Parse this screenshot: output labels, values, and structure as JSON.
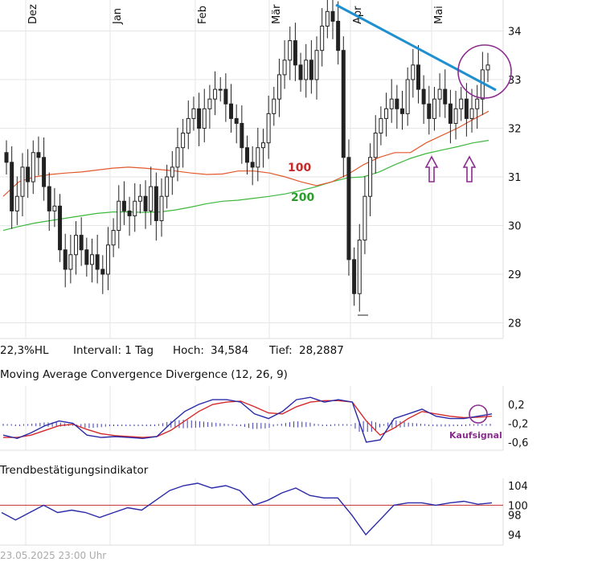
{
  "chart_data": [
    {
      "type": "candlestick",
      "panel": "price",
      "x_ticks": [
        "Dez",
        "Jan",
        "Feb",
        "Mär",
        "Apr",
        "Mai"
      ],
      "ylim": [
        27.8,
        34.6
      ],
      "y_ticks": [
        "34",
        "33",
        "32",
        "31",
        "30",
        "29",
        "28"
      ],
      "series": [
        {
          "name": "Kurs",
          "color": "#222222",
          "close": [
            31.3,
            30.3,
            30.6,
            31.2,
            30.9,
            31.5,
            31.4,
            30.8,
            30.3,
            30.4,
            29.5,
            29.1,
            29.4,
            29.8,
            29.5,
            29.2,
            29.4,
            29.1,
            29.0,
            29.6,
            29.9,
            30.5,
            30.3,
            30.2,
            30.5,
            30.6,
            30.3,
            30.8,
            30.1,
            30.6,
            31.0,
            31.2,
            31.6,
            31.9,
            32.2,
            32.4,
            32.0,
            32.4,
            32.6,
            32.8,
            32.8,
            32.5,
            32.2,
            32.1,
            31.6,
            31.3,
            31.2,
            31.6,
            31.7,
            32.3,
            32.6,
            33.1,
            33.4,
            33.8,
            33.3,
            33.0,
            33.4,
            33.0,
            33.6,
            34.1,
            34.4,
            34.2,
            33.6,
            31.4,
            29.3,
            28.6,
            29.7,
            30.6,
            31.4,
            31.9,
            32.2,
            32.4,
            32.6,
            32.4,
            32.3,
            33.0,
            33.3,
            32.8,
            32.5,
            32.2,
            32.6,
            32.8,
            32.5,
            32.1,
            32.4,
            32.6,
            32.2,
            32.4,
            32.6,
            33.2,
            33.3
          ]
        },
        {
          "name": "100",
          "color": "#e3582c",
          "values": [
            30.6,
            30.9,
            31.0,
            31.05,
            31.08,
            31.1,
            31.14,
            31.18,
            31.2,
            31.18,
            31.15,
            31.12,
            31.08,
            31.05,
            31.06,
            31.12,
            31.12,
            31.08,
            31.0,
            30.9,
            30.82,
            30.9,
            31.05,
            31.25,
            31.4,
            31.5,
            31.5,
            31.7,
            31.85,
            32.0,
            32.18,
            32.35
          ]
        },
        {
          "name": "200",
          "color": "#3db83d",
          "values": [
            29.9,
            29.98,
            30.05,
            30.1,
            30.15,
            30.2,
            30.25,
            30.28,
            30.28,
            30.27,
            30.28,
            30.32,
            30.38,
            30.45,
            30.5,
            30.52,
            30.56,
            30.6,
            30.65,
            30.72,
            30.8,
            30.9,
            30.98,
            31.0,
            31.1,
            31.25,
            31.38,
            31.48,
            31.55,
            31.62,
            31.7,
            31.75
          ]
        }
      ],
      "annotations": [
        "100",
        "200"
      ]
    },
    {
      "type": "line",
      "panel": "macd",
      "title": "Moving Average Convergence Divergence (12, 26, 9)",
      "ylim": [
        -0.7,
        0.4
      ],
      "y_ticks": [
        "0,2",
        "-0,2",
        "-0,6"
      ],
      "series": [
        {
          "name": "MACD",
          "color": "#2a2aa8",
          "values": [
            -0.45,
            -0.52,
            -0.4,
            -0.25,
            -0.15,
            -0.2,
            -0.45,
            -0.5,
            -0.48,
            -0.5,
            -0.52,
            -0.48,
            -0.2,
            0.05,
            0.2,
            0.3,
            0.3,
            0.25,
            0.0,
            -0.1,
            0.05,
            0.3,
            0.35,
            0.25,
            0.3,
            0.25,
            -0.6,
            -0.55,
            -0.1,
            0.0,
            0.1,
            -0.05,
            -0.1,
            -0.1,
            -0.05,
            0.0
          ]
        },
        {
          "name": "Signal",
          "color": "#d42a2a",
          "values": [
            -0.5,
            -0.5,
            -0.45,
            -0.35,
            -0.25,
            -0.22,
            -0.33,
            -0.42,
            -0.46,
            -0.48,
            -0.5,
            -0.48,
            -0.35,
            -0.15,
            0.05,
            0.2,
            0.25,
            0.27,
            0.15,
            0.02,
            0.0,
            0.15,
            0.25,
            0.28,
            0.28,
            0.25,
            -0.15,
            -0.45,
            -0.3,
            -0.1,
            0.05,
            0.0,
            -0.05,
            -0.08,
            -0.07,
            -0.05
          ]
        }
      ],
      "annotations": [
        "Kaufsignal"
      ]
    },
    {
      "type": "line",
      "panel": "tbi",
      "title": "Trendbestätigungsindikator",
      "ylim": [
        93,
        105
      ],
      "y_ticks": [
        "104",
        "100",
        "98",
        "94"
      ],
      "reference_line": 100,
      "series": [
        {
          "name": "TBI",
          "color": "#2a2aa8",
          "values": [
            98.5,
            97,
            98.5,
            100,
            98.5,
            99,
            98.5,
            97.5,
            98.5,
            99.5,
            99,
            101,
            103,
            104,
            104.5,
            103.5,
            104,
            103,
            100,
            101,
            102.5,
            103.5,
            102,
            101.5,
            101.5,
            98,
            94,
            97,
            100,
            100.5,
            100.5,
            100,
            100.5,
            100.8,
            100.2,
            100.5
          ]
        }
      ]
    }
  ],
  "stats": {
    "range_pct": "22,3%HL",
    "interval": "Intervall: 1 Tag",
    "high_label": "Hoch:",
    "high_value": "34,584",
    "low_label": "Tief:",
    "low_value": "28,2887"
  },
  "panels": {
    "macd_title": "Moving Average Convergence Divergence (12, 26, 9)",
    "tbi_title": "Trendbestätigungsindikator"
  },
  "timestamp": "23.05.2025 23:00 Uhr",
  "colors": {
    "grid": "#e6e6e6",
    "candle": "#222222",
    "trendline": "#1f8fd0",
    "signal": "#8b2c8f",
    "ma100": "#e3582c",
    "ma200": "#3db83d",
    "macd": "#2a2aa8",
    "macd_signal": "#d42a2a",
    "hist": "#3a3ab0",
    "tbi_ref": "#c03030"
  }
}
